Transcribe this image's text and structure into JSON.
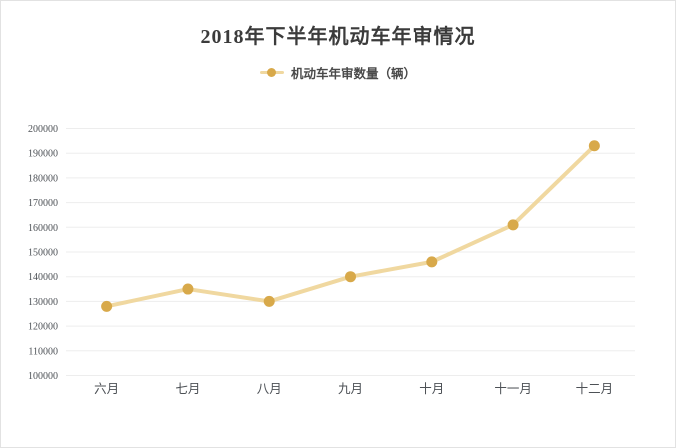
{
  "chart_frame": {
    "background": "#ffffff",
    "border_color": "#e2e2e2"
  },
  "chart_data": {
    "type": "line",
    "title": "2018年下半年机动车年审情况",
    "legend": {
      "label": "机动车年审数量（辆）",
      "position": "top-center"
    },
    "categories": [
      "六月",
      "七月",
      "八月",
      "九月",
      "十月",
      "十一月",
      "十二月"
    ],
    "series": [
      {
        "name": "机动车年审数量（辆）",
        "values": [
          128000,
          135000,
          130000,
          140000,
          146000,
          161000,
          193000
        ]
      }
    ],
    "xlabel": "",
    "ylabel": "",
    "ylim": [
      100000,
      200000
    ],
    "ytick_step": 10000,
    "ytick_labels": [
      "100000",
      "110000",
      "120000",
      "130000",
      "140000",
      "150000",
      "160000",
      "170000",
      "180000",
      "190000",
      "200000"
    ],
    "grid": true,
    "colors": {
      "line": "#f0d8a0",
      "marker": "#d8a94a",
      "gridline": "#ededed",
      "tick_text": "#4d5156",
      "title_text": "#3b3b3b",
      "legend_text": "#4a4a4a"
    }
  }
}
